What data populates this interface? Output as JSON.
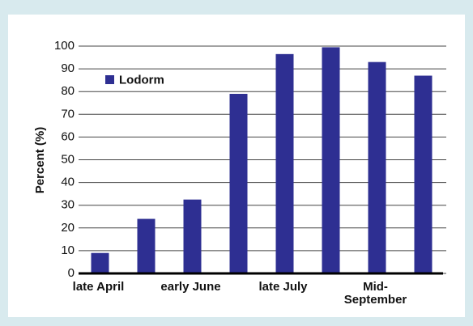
{
  "chart_data": {
    "type": "bar",
    "y_label": "Percent (%)",
    "categories": [
      "late April",
      null,
      "early June",
      null,
      "late July",
      null,
      "Mid-September",
      null
    ],
    "series": [
      {
        "name": "Lodorm",
        "color": "#2e2f92",
        "values": [
          9,
          24,
          32.5,
          79,
          96.5,
          99.5,
          93,
          87
        ]
      }
    ],
    "ylim": [
      0,
      100
    ],
    "yticks": [
      0,
      10,
      20,
      30,
      40,
      50,
      60,
      70,
      80,
      90,
      100
    ],
    "grid": true,
    "legend": "upper left"
  }
}
